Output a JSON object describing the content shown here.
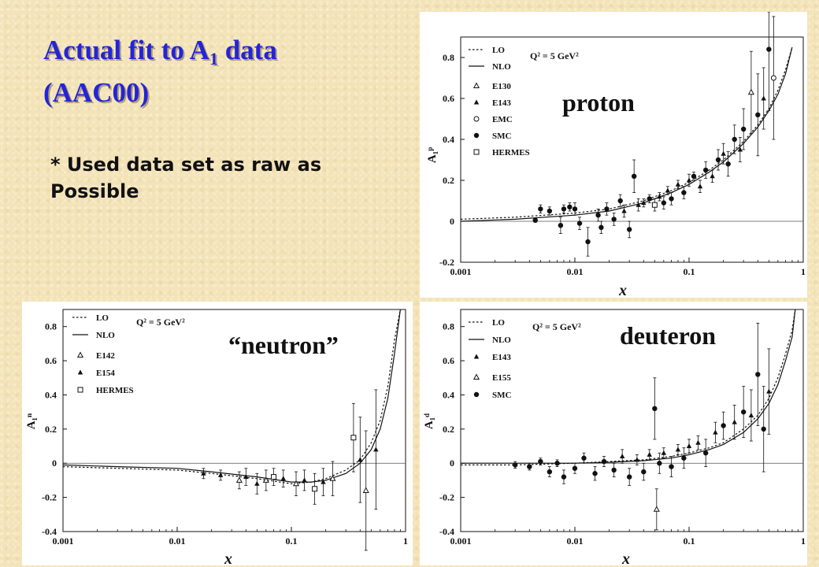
{
  "slide": {
    "title_main": "Actual fit to A",
    "title_sub": "1",
    "title_rest": " data",
    "title_line2": "(AAC00)",
    "note_line1": "* Used data set as raw as",
    "note_line2": "Possible"
  },
  "colors": {
    "title": "#2424d8",
    "background": "#f3e3b8",
    "ink": "#111111"
  },
  "chart_data": [
    {
      "id": "proton",
      "type": "scatter",
      "label": "proton",
      "q2": "Q² = 5 GeV²",
      "xlabel": "x",
      "ylabel": "A₁ᵖ",
      "xscale": "log",
      "xlim": [
        0.001,
        1
      ],
      "ylim": [
        -0.2,
        0.9
      ],
      "xticks": [
        "0.001",
        "0.01",
        "0.1",
        "1"
      ],
      "yticks": [
        -0.2,
        0,
        0.2,
        0.4,
        0.6,
        0.8
      ],
      "legend": [
        "LO",
        "NLO",
        "E130",
        "E143",
        "EMC",
        "SMC",
        "HERMES"
      ],
      "curves": [
        {
          "name": "LO",
          "style": "dotted",
          "x": [
            0.001,
            0.003,
            0.01,
            0.02,
            0.04,
            0.07,
            0.1,
            0.15,
            0.2,
            0.3,
            0.4,
            0.5,
            0.6,
            0.7,
            0.8
          ],
          "y": [
            0.01,
            0.02,
            0.04,
            0.06,
            0.1,
            0.15,
            0.19,
            0.25,
            0.3,
            0.39,
            0.47,
            0.55,
            0.64,
            0.74,
            0.85
          ]
        },
        {
          "name": "NLO",
          "style": "solid",
          "x": [
            0.001,
            0.003,
            0.01,
            0.02,
            0.04,
            0.07,
            0.1,
            0.15,
            0.2,
            0.3,
            0.4,
            0.5,
            0.6,
            0.7,
            0.8
          ],
          "y": [
            0.0,
            0.01,
            0.03,
            0.05,
            0.09,
            0.14,
            0.18,
            0.24,
            0.29,
            0.38,
            0.46,
            0.54,
            0.62,
            0.72,
            0.85
          ]
        }
      ],
      "points": [
        {
          "x": 0.0045,
          "y": 0.005,
          "e": 0.01,
          "m": "SMC"
        },
        {
          "x": 0.005,
          "y": 0.06,
          "e": 0.02,
          "m": "SMC"
        },
        {
          "x": 0.006,
          "y": 0.05,
          "e": 0.02,
          "m": "SMC"
        },
        {
          "x": 0.0075,
          "y": -0.02,
          "e": 0.04,
          "m": "SMC"
        },
        {
          "x": 0.008,
          "y": 0.06,
          "e": 0.02,
          "m": "SMC"
        },
        {
          "x": 0.009,
          "y": 0.07,
          "e": 0.02,
          "m": "SMC"
        },
        {
          "x": 0.01,
          "y": 0.06,
          "e": 0.03,
          "m": "SMC"
        },
        {
          "x": 0.011,
          "y": -0.01,
          "e": 0.03,
          "m": "SMC"
        },
        {
          "x": 0.013,
          "y": -0.1,
          "e": 0.07,
          "m": "SMC"
        },
        {
          "x": 0.016,
          "y": 0.03,
          "e": 0.03,
          "m": "SMC"
        },
        {
          "x": 0.017,
          "y": -0.03,
          "e": 0.03,
          "m": "SMC"
        },
        {
          "x": 0.019,
          "y": 0.06,
          "e": 0.03,
          "m": "SMC"
        },
        {
          "x": 0.022,
          "y": 0.01,
          "e": 0.03,
          "m": "SMC"
        },
        {
          "x": 0.025,
          "y": 0.1,
          "e": 0.03,
          "m": "SMC"
        },
        {
          "x": 0.027,
          "y": 0.05,
          "e": 0.03,
          "m": "E143"
        },
        {
          "x": 0.03,
          "y": -0.04,
          "e": 0.04,
          "m": "SMC"
        },
        {
          "x": 0.033,
          "y": 0.22,
          "e": 0.08,
          "m": "SMC"
        },
        {
          "x": 0.036,
          "y": 0.08,
          "e": 0.03,
          "m": "E143"
        },
        {
          "x": 0.04,
          "y": 0.09,
          "e": 0.02,
          "m": "E143"
        },
        {
          "x": 0.045,
          "y": 0.11,
          "e": 0.02,
          "m": "SMC"
        },
        {
          "x": 0.05,
          "y": 0.08,
          "e": 0.03,
          "m": "HERMES"
        },
        {
          "x": 0.055,
          "y": 0.12,
          "e": 0.02,
          "m": "E143"
        },
        {
          "x": 0.06,
          "y": 0.09,
          "e": 0.03,
          "m": "SMC"
        },
        {
          "x": 0.065,
          "y": 0.15,
          "e": 0.02,
          "m": "E143"
        },
        {
          "x": 0.07,
          "y": 0.11,
          "e": 0.03,
          "m": "SMC"
        },
        {
          "x": 0.08,
          "y": 0.18,
          "e": 0.02,
          "m": "E143"
        },
        {
          "x": 0.09,
          "y": 0.14,
          "e": 0.03,
          "m": "SMC"
        },
        {
          "x": 0.1,
          "y": 0.2,
          "e": 0.03,
          "m": "E143"
        },
        {
          "x": 0.11,
          "y": 0.22,
          "e": 0.02,
          "m": "SMC"
        },
        {
          "x": 0.125,
          "y": 0.17,
          "e": 0.03,
          "m": "E143"
        },
        {
          "x": 0.14,
          "y": 0.25,
          "e": 0.04,
          "m": "SMC"
        },
        {
          "x": 0.16,
          "y": 0.22,
          "e": 0.03,
          "m": "E143"
        },
        {
          "x": 0.18,
          "y": 0.3,
          "e": 0.05,
          "m": "SMC"
        },
        {
          "x": 0.2,
          "y": 0.33,
          "e": 0.05,
          "m": "E143"
        },
        {
          "x": 0.22,
          "y": 0.28,
          "e": 0.06,
          "m": "SMC"
        },
        {
          "x": 0.25,
          "y": 0.4,
          "e": 0.07,
          "m": "SMC"
        },
        {
          "x": 0.28,
          "y": 0.35,
          "e": 0.06,
          "m": "E143"
        },
        {
          "x": 0.3,
          "y": 0.45,
          "e": 0.1,
          "m": "SMC"
        },
        {
          "x": 0.35,
          "y": 0.63,
          "e": 0.2,
          "m": "E130"
        },
        {
          "x": 0.4,
          "y": 0.52,
          "e": 0.2,
          "m": "SMC"
        },
        {
          "x": 0.45,
          "y": 0.6,
          "e": 0.15,
          "m": "E143"
        },
        {
          "x": 0.5,
          "y": 0.84,
          "e": 0.3,
          "m": "SMC"
        },
        {
          "x": 0.55,
          "y": 0.7,
          "e": 0.3,
          "m": "EMC"
        }
      ]
    },
    {
      "id": "neutron",
      "type": "scatter",
      "label": "“neutron”",
      "q2": "Q² = 5 GeV²",
      "xlabel": "x",
      "ylabel": "A₁ⁿ",
      "xscale": "log",
      "xlim": [
        0.001,
        1
      ],
      "ylim": [
        -0.4,
        0.9
      ],
      "xticks": [
        "0.001",
        "0.01",
        "0.1",
        "1"
      ],
      "yticks": [
        -0.4,
        -0.2,
        0,
        0.2,
        0.4,
        0.6,
        0.8
      ],
      "legend": [
        "LO",
        "NLO",
        "E142",
        "E154",
        "HERMES"
      ],
      "curves": [
        {
          "name": "LO",
          "style": "dotted",
          "x": [
            0.001,
            0.003,
            0.01,
            0.02,
            0.05,
            0.1,
            0.15,
            0.2,
            0.3,
            0.4,
            0.5,
            0.6,
            0.7,
            0.8,
            0.9
          ],
          "y": [
            -0.02,
            -0.03,
            -0.04,
            -0.06,
            -0.09,
            -0.12,
            -0.11,
            -0.09,
            -0.04,
            0.02,
            0.12,
            0.25,
            0.45,
            0.72,
            0.9
          ]
        },
        {
          "name": "NLO",
          "style": "solid",
          "x": [
            0.001,
            0.003,
            0.01,
            0.02,
            0.05,
            0.1,
            0.15,
            0.2,
            0.3,
            0.4,
            0.5,
            0.6,
            0.7,
            0.8,
            0.9
          ],
          "y": [
            -0.01,
            -0.02,
            -0.03,
            -0.05,
            -0.08,
            -0.11,
            -0.11,
            -0.1,
            -0.06,
            0.0,
            0.08,
            0.2,
            0.38,
            0.64,
            0.9
          ]
        }
      ],
      "points": [
        {
          "x": 0.017,
          "y": -0.06,
          "e": 0.03,
          "m": "E154"
        },
        {
          "x": 0.024,
          "y": -0.07,
          "e": 0.03,
          "m": "E154"
        },
        {
          "x": 0.035,
          "y": -0.1,
          "e": 0.05,
          "m": "E142"
        },
        {
          "x": 0.04,
          "y": -0.08,
          "e": 0.05,
          "m": "E154"
        },
        {
          "x": 0.05,
          "y": -0.12,
          "e": 0.06,
          "m": "E154"
        },
        {
          "x": 0.06,
          "y": -0.1,
          "e": 0.06,
          "m": "E142"
        },
        {
          "x": 0.07,
          "y": -0.08,
          "e": 0.05,
          "m": "HERMES"
        },
        {
          "x": 0.085,
          "y": -0.09,
          "e": 0.05,
          "m": "E154"
        },
        {
          "x": 0.11,
          "y": -0.12,
          "e": 0.07,
          "m": "E142"
        },
        {
          "x": 0.13,
          "y": -0.1,
          "e": 0.06,
          "m": "E154"
        },
        {
          "x": 0.16,
          "y": -0.15,
          "e": 0.09,
          "m": "HERMES"
        },
        {
          "x": 0.19,
          "y": -0.11,
          "e": 0.08,
          "m": "E154"
        },
        {
          "x": 0.23,
          "y": -0.09,
          "e": 0.1,
          "m": "E142"
        },
        {
          "x": 0.35,
          "y": 0.15,
          "e": 0.2,
          "m": "HERMES"
        },
        {
          "x": 0.4,
          "y": 0.02,
          "e": 0.25,
          "m": "E154"
        },
        {
          "x": 0.45,
          "y": -0.16,
          "e": 0.35,
          "m": "E142"
        },
        {
          "x": 0.55,
          "y": 0.08,
          "e": 0.35,
          "m": "E154"
        }
      ]
    },
    {
      "id": "deuteron",
      "type": "scatter",
      "label": "deuteron",
      "q2": "Q² = 5 GeV²",
      "xlabel": "x",
      "ylabel": "A₁ᵈ",
      "xscale": "log",
      "xlim": [
        0.001,
        1
      ],
      "ylim": [
        -0.4,
        0.9
      ],
      "xticks": [
        "0.001",
        "0.01",
        "0.1",
        "1"
      ],
      "yticks": [
        -0.4,
        -0.2,
        0,
        0.2,
        0.4,
        0.6,
        0.8
      ],
      "legend": [
        "LO",
        "NLO",
        "E143",
        "E155",
        "SMC"
      ],
      "curves": [
        {
          "name": "LO",
          "style": "dotted",
          "x": [
            0.001,
            0.003,
            0.01,
            0.02,
            0.04,
            0.07,
            0.1,
            0.15,
            0.2,
            0.3,
            0.4,
            0.5,
            0.6,
            0.7,
            0.8,
            0.85
          ],
          "y": [
            -0.01,
            -0.01,
            0.0,
            0.01,
            0.02,
            0.04,
            0.06,
            0.09,
            0.12,
            0.2,
            0.28,
            0.38,
            0.5,
            0.64,
            0.78,
            0.9
          ]
        },
        {
          "name": "NLO",
          "style": "solid",
          "x": [
            0.001,
            0.003,
            0.01,
            0.02,
            0.04,
            0.07,
            0.1,
            0.15,
            0.2,
            0.3,
            0.4,
            0.5,
            0.6,
            0.7,
            0.8,
            0.85
          ],
          "y": [
            0.0,
            0.0,
            0.0,
            0.005,
            0.015,
            0.03,
            0.05,
            0.08,
            0.11,
            0.18,
            0.26,
            0.35,
            0.46,
            0.6,
            0.74,
            0.9
          ]
        }
      ],
      "points": [
        {
          "x": 0.003,
          "y": -0.01,
          "e": 0.02,
          "m": "SMC"
        },
        {
          "x": 0.004,
          "y": -0.02,
          "e": 0.02,
          "m": "SMC"
        },
        {
          "x": 0.005,
          "y": 0.01,
          "e": 0.02,
          "m": "SMC"
        },
        {
          "x": 0.006,
          "y": -0.05,
          "e": 0.03,
          "m": "SMC"
        },
        {
          "x": 0.007,
          "y": 0.0,
          "e": 0.02,
          "m": "SMC"
        },
        {
          "x": 0.008,
          "y": -0.08,
          "e": 0.04,
          "m": "SMC"
        },
        {
          "x": 0.01,
          "y": -0.03,
          "e": 0.03,
          "m": "SMC"
        },
        {
          "x": 0.012,
          "y": 0.03,
          "e": 0.03,
          "m": "SMC"
        },
        {
          "x": 0.015,
          "y": -0.06,
          "e": 0.04,
          "m": "SMC"
        },
        {
          "x": 0.018,
          "y": 0.01,
          "e": 0.03,
          "m": "SMC"
        },
        {
          "x": 0.022,
          "y": -0.04,
          "e": 0.04,
          "m": "SMC"
        },
        {
          "x": 0.026,
          "y": 0.04,
          "e": 0.04,
          "m": "E143"
        },
        {
          "x": 0.03,
          "y": -0.08,
          "e": 0.05,
          "m": "SMC"
        },
        {
          "x": 0.035,
          "y": 0.02,
          "e": 0.03,
          "m": "E143"
        },
        {
          "x": 0.04,
          "y": -0.05,
          "e": 0.05,
          "m": "SMC"
        },
        {
          "x": 0.045,
          "y": 0.05,
          "e": 0.03,
          "m": "E143"
        },
        {
          "x": 0.05,
          "y": 0.32,
          "e": 0.18,
          "m": "SMC"
        },
        {
          "x": 0.052,
          "y": -0.27,
          "e": 0.12,
          "m": "E155"
        },
        {
          "x": 0.055,
          "y": 0.0,
          "e": 0.06,
          "m": "SMC"
        },
        {
          "x": 0.06,
          "y": 0.06,
          "e": 0.03,
          "m": "E143"
        },
        {
          "x": 0.07,
          "y": -0.02,
          "e": 0.06,
          "m": "SMC"
        },
        {
          "x": 0.08,
          "y": 0.08,
          "e": 0.03,
          "m": "E143"
        },
        {
          "x": 0.09,
          "y": 0.03,
          "e": 0.06,
          "m": "SMC"
        },
        {
          "x": 0.1,
          "y": 0.1,
          "e": 0.04,
          "m": "E143"
        },
        {
          "x": 0.12,
          "y": 0.12,
          "e": 0.04,
          "m": "E143"
        },
        {
          "x": 0.14,
          "y": 0.06,
          "e": 0.08,
          "m": "SMC"
        },
        {
          "x": 0.17,
          "y": 0.18,
          "e": 0.06,
          "m": "E143"
        },
        {
          "x": 0.2,
          "y": 0.22,
          "e": 0.08,
          "m": "SMC"
        },
        {
          "x": 0.25,
          "y": 0.24,
          "e": 0.1,
          "m": "E143"
        },
        {
          "x": 0.3,
          "y": 0.3,
          "e": 0.15,
          "m": "SMC"
        },
        {
          "x": 0.35,
          "y": 0.28,
          "e": 0.15,
          "m": "E143"
        },
        {
          "x": 0.4,
          "y": 0.52,
          "e": 0.3,
          "m": "SMC"
        },
        {
          "x": 0.45,
          "y": 0.2,
          "e": 0.25,
          "m": "SMC"
        },
        {
          "x": 0.5,
          "y": 0.42,
          "e": 0.25,
          "m": "E143"
        }
      ]
    }
  ]
}
